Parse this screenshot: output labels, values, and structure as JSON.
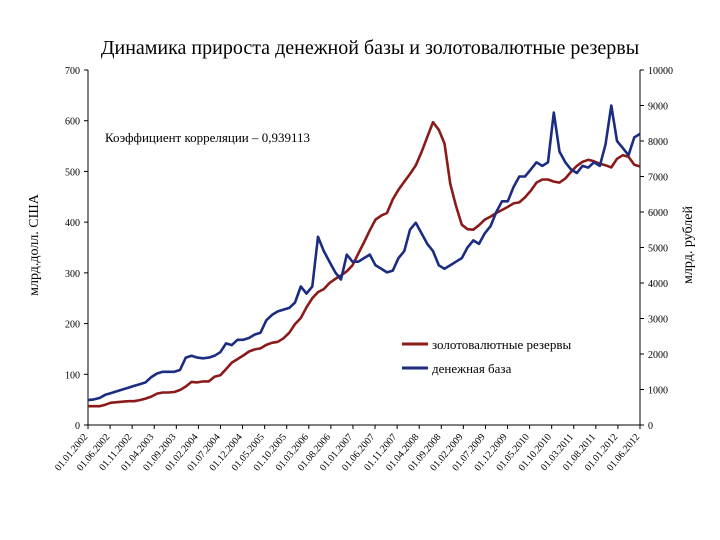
{
  "chart_data": {
    "type": "line",
    "title": "Динамика прироста денежной базы и золотовалютные резервы",
    "ylabel_left": "млрд.долл. США",
    "ylabel_right": "млрд. рублей",
    "annotation": "Коэффициент корреляции – 0,939113",
    "y_left": {
      "lim": [
        0,
        700
      ],
      "ticks": [
        "0",
        "100",
        "200",
        "300",
        "400",
        "500",
        "600",
        "700"
      ]
    },
    "y_right": {
      "lim": [
        0,
        10000
      ],
      "ticks": [
        "0",
        "1000",
        "2000",
        "3000",
        "4000",
        "5000",
        "6000",
        "7000",
        "8000",
        "9000",
        "10000"
      ]
    },
    "x_ticks": [
      "01.01.2002",
      "01.06.2002",
      "01.11.2002",
      "01.04.2003",
      "01.09.2003",
      "01.02.2004",
      "01.07.2004",
      "01.12.2004",
      "01.05.2005",
      "01.10.2005",
      "01.03.2006",
      "01.08.2006",
      "01.01.2007",
      "01.06.2007",
      "01.11.2007",
      "01.04.2008",
      "01.09.2008",
      "01.02.2009",
      "01.07.2009",
      "01.12.2009",
      "01.05.2010",
      "01.10.2010",
      "01.03.2011",
      "01.08.2011",
      "01.01.2012",
      "01.06.2012"
    ],
    "series": [
      {
        "name": "золотовалютные резервы",
        "axis": "left",
        "color": "#8b1a1a",
        "values": [
          37,
          37,
          37,
          40,
          44,
          45,
          46,
          47,
          47,
          49,
          52,
          56,
          62,
          64,
          64,
          65,
          69,
          76,
          85,
          84,
          86,
          86,
          95,
          98,
          110,
          123,
          130,
          137,
          145,
          149,
          151,
          158,
          162,
          164,
          171,
          182,
          199,
          211,
          232,
          250,
          262,
          268,
          280,
          288,
          295,
          303,
          315,
          338,
          360,
          384,
          405,
          413,
          418,
          445,
          464,
          480,
          495,
          512,
          538,
          568,
          597,
          582,
          555,
          475,
          432,
          395,
          386,
          385,
          394,
          405,
          411,
          418,
          424,
          430,
          437,
          439,
          449,
          462,
          478,
          484,
          484,
          480,
          478,
          486,
          499,
          511,
          519,
          523,
          520,
          515,
          512,
          508,
          525,
          532,
          529,
          513,
          510
        ]
      },
      {
        "name": "денежная база",
        "axis": "right",
        "color": "#1c2c80",
        "values": [
          700,
          720,
          760,
          850,
          900,
          950,
          1000,
          1050,
          1100,
          1150,
          1200,
          1350,
          1450,
          1500,
          1500,
          1500,
          1550,
          1900,
          1950,
          1900,
          1880,
          1900,
          1950,
          2050,
          2300,
          2250,
          2400,
          2400,
          2450,
          2550,
          2600,
          2950,
          3100,
          3200,
          3250,
          3300,
          3450,
          3900,
          3700,
          3900,
          5300,
          4900,
          4600,
          4300,
          4100,
          4800,
          4600,
          4600,
          4700,
          4800,
          4500,
          4400,
          4300,
          4350,
          4700,
          4900,
          5500,
          5700,
          5400,
          5100,
          4900,
          4500,
          4400,
          4500,
          4600,
          4700,
          5000,
          5200,
          5100,
          5400,
          5600,
          6000,
          6300,
          6300,
          6700,
          7000,
          7000,
          7200,
          7400,
          7300,
          7400,
          8800,
          7700,
          7400,
          7200,
          7100,
          7300,
          7250,
          7400,
          7300,
          7900,
          9000,
          8000,
          7800,
          7600,
          8100,
          8200
        ]
      }
    ],
    "legend": {
      "placement": "bottom-right",
      "entries": [
        "золотовалютные резервы",
        "денежная база"
      ]
    }
  }
}
